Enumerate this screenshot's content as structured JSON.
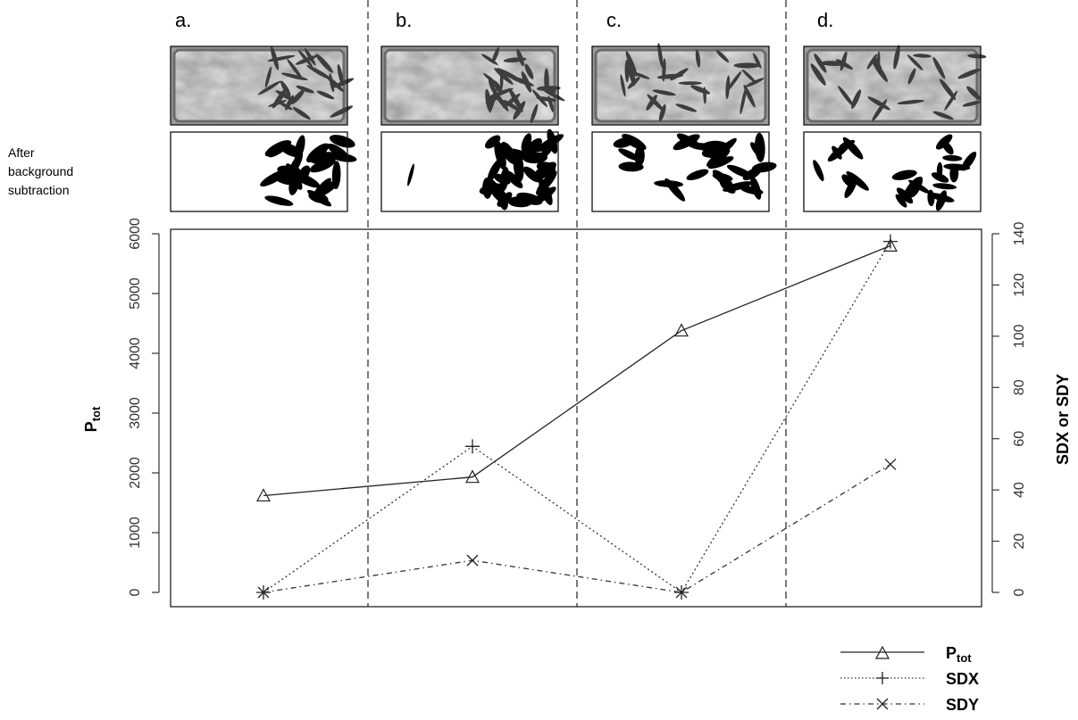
{
  "panels": {
    "letters": [
      "a.",
      "b.",
      "c.",
      "d."
    ],
    "side_label_lines": [
      "After",
      "background",
      "subtraction"
    ]
  },
  "chart_data": {
    "type": "line",
    "x": [
      1,
      2,
      3,
      4
    ],
    "xlim": [
      0.5,
      4.5
    ],
    "ylabel_left": "P",
    "ylabel_left_subscript": "tot",
    "ylabel_right": "SDX or SDY",
    "ylim_left": [
      0,
      6000
    ],
    "yticks_left": [
      0,
      1000,
      2000,
      3000,
      4000,
      5000,
      6000
    ],
    "ylim_right": [
      0,
      140
    ],
    "yticks_right": [
      0,
      20,
      40,
      60,
      80,
      100,
      120,
      140
    ],
    "dividers_x": [
      1.5,
      2.5,
      3.5
    ],
    "grid": false,
    "legend_position": "bottom-right",
    "series": [
      {
        "name": "P",
        "name_subscript": "tot",
        "axis": "left",
        "values": [
          1620,
          1930,
          4380,
          5800
        ],
        "marker": "triangle",
        "line": "solid",
        "color": "#222222"
      },
      {
        "name": "SDX",
        "axis": "right",
        "values": [
          0,
          57,
          0,
          137
        ],
        "marker": "plus",
        "line": "dotted",
        "color": "#333333"
      },
      {
        "name": "SDY",
        "axis": "right",
        "values": [
          0,
          12.5,
          0,
          50
        ],
        "marker": "cross",
        "line": "dashdot",
        "color": "#333333"
      }
    ]
  }
}
